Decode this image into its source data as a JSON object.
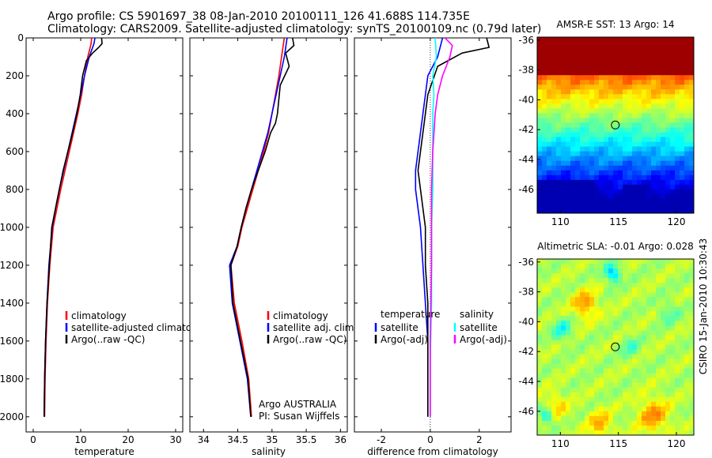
{
  "header": {
    "title_line1": "Argo profile: CS 5901697_38 08-Jan-2010 20100111_126 41.688S 114.735E",
    "title_line2": "Climatology: CARS2009. Satellite-adjusted climatology: synTS_20100109.nc (0.79d later)"
  },
  "side_label": "CSIRO 15-Jan-2010 10:30:43",
  "colors": {
    "red": "#ff0000",
    "blue": "#0000ff",
    "black": "#000000",
    "cyan": "#00ffff",
    "magenta": "#ff00ff",
    "circle": "#000000"
  },
  "chart_data": [
    {
      "id": "temperature",
      "type": "line",
      "xlabel": "temperature",
      "xlim": [
        -1.5,
        31.5
      ],
      "ylim": [
        0,
        2080
      ],
      "xticks": [
        0,
        10,
        20,
        30
      ],
      "yticks": [
        0,
        200,
        400,
        600,
        800,
        1000,
        1200,
        1400,
        1600,
        1800,
        2000
      ],
      "legend": [
        "climatology",
        "satellite-adjusted climatolog",
        "Argo(..raw -QC)"
      ],
      "series": [
        {
          "name": "climatology",
          "color": "red",
          "x": [
            12.3,
            12.2,
            11.5,
            10.8,
            10.2,
            9.4,
            8.5,
            7.6,
            6.7,
            5.8,
            5.0,
            4.2,
            3.5,
            3.0,
            2.7,
            2.5,
            2.4
          ],
          "y": [
            0,
            30,
            100,
            200,
            300,
            400,
            500,
            600,
            700,
            800,
            900,
            1000,
            1200,
            1400,
            1600,
            1800,
            2000
          ]
        },
        {
          "name": "satellite-adjusted climatology",
          "color": "blue",
          "x": [
            13.0,
            12.8,
            11.8,
            10.8,
            10.0,
            9.1,
            8.2,
            7.3,
            6.4,
            5.5,
            4.7,
            4.0,
            3.3,
            2.9,
            2.6,
            2.4,
            2.3
          ],
          "y": [
            0,
            30,
            100,
            200,
            300,
            400,
            500,
            600,
            700,
            800,
            900,
            1000,
            1200,
            1400,
            1600,
            1800,
            2000
          ]
        },
        {
          "name": "Argo(..raw -QC)",
          "color": "black",
          "x": [
            14.4,
            14.5,
            13.8,
            12.5,
            11.2,
            10.4,
            9.9,
            9.2,
            8.3,
            7.3,
            6.3,
            5.5,
            4.7,
            3.9,
            3.4,
            2.9,
            2.6,
            2.4,
            2.3
          ],
          "y": [
            0,
            30,
            50,
            80,
            120,
            200,
            300,
            400,
            500,
            600,
            700,
            800,
            900,
            1000,
            1200,
            1400,
            1600,
            1800,
            2000
          ]
        }
      ]
    },
    {
      "id": "salinity",
      "type": "line",
      "xlabel": "salinity",
      "xlim": [
        33.8,
        36.1
      ],
      "ylim": [
        0,
        2080
      ],
      "xticks": [
        34,
        34.5,
        35,
        35.5,
        36
      ],
      "xticklabels": [
        "34",
        "34.5",
        "35",
        "35.5",
        "36"
      ],
      "legend": [
        "climatology",
        "satellite adj. clim.",
        "Argo(..raw -QC)"
      ],
      "series": [
        {
          "name": "climatology",
          "color": "red",
          "x": [
            35.18,
            35.14,
            35.1,
            35.05,
            35.0,
            34.95,
            34.88,
            34.8,
            34.72,
            34.64,
            34.56,
            34.5,
            34.4,
            34.45,
            34.56,
            34.66,
            34.7
          ],
          "y": [
            0,
            100,
            200,
            300,
            400,
            500,
            600,
            700,
            800,
            900,
            1000,
            1100,
            1200,
            1400,
            1600,
            1800,
            2000
          ]
        },
        {
          "name": "satellite adj. clim.",
          "color": "blue",
          "x": [
            35.22,
            35.18,
            35.12,
            35.06,
            35.0,
            34.94,
            34.86,
            34.78,
            34.7,
            34.62,
            34.55,
            34.49,
            34.38,
            34.42,
            34.53,
            34.64,
            34.69
          ],
          "y": [
            0,
            100,
            200,
            300,
            400,
            500,
            600,
            700,
            800,
            900,
            1000,
            1100,
            1200,
            1400,
            1600,
            1800,
            2000
          ]
        },
        {
          "name": "Argo(..raw -QC)",
          "color": "black",
          "x": [
            35.3,
            35.32,
            35.2,
            35.25,
            35.12,
            35.08,
            35.05,
            34.98,
            34.9,
            34.8,
            34.7,
            34.62,
            34.55,
            34.49,
            34.4,
            34.43,
            34.54,
            34.65,
            34.69
          ],
          "y": [
            0,
            40,
            80,
            150,
            250,
            400,
            450,
            500,
            600,
            700,
            800,
            900,
            1000,
            1100,
            1200,
            1400,
            1600,
            1800,
            2000
          ]
        }
      ]
    },
    {
      "id": "difference",
      "type": "line",
      "xlabel": "difference from climatology",
      "xlim": [
        -3.1,
        3.3
      ],
      "ylim": [
        0,
        2080
      ],
      "xticks": [
        -2,
        0,
        2
      ],
      "legend_titles": [
        "temperature",
        "salinity"
      ],
      "legend": [
        "satellite",
        "Argo(-adj)",
        "satellite",
        "Argo(-adj)"
      ],
      "series": [
        {
          "name": "temperature satellite",
          "color": "blue",
          "x": [
            0.5,
            0.3,
            -0.1,
            -0.2,
            -0.3,
            -0.4,
            -0.5,
            -0.6,
            -0.6,
            -0.5,
            -0.4,
            -0.3,
            -0.2,
            -0.1,
            -0.1,
            -0.1
          ],
          "y": [
            0,
            100,
            200,
            300,
            400,
            500,
            600,
            700,
            800,
            900,
            1000,
            1200,
            1400,
            1600,
            1800,
            2000
          ]
        },
        {
          "name": "temperature Argo(-adj)",
          "color": "black",
          "x": [
            2.3,
            2.4,
            1.3,
            0.3,
            -0.1,
            -0.2,
            -0.3,
            -0.4,
            -0.5,
            -0.4,
            -0.3,
            -0.2,
            -0.2,
            -0.1,
            -0.1,
            -0.1
          ],
          "y": [
            0,
            50,
            80,
            150,
            300,
            400,
            500,
            600,
            700,
            800,
            900,
            1000,
            1200,
            1400,
            1600,
            2000
          ]
        },
        {
          "name": "salinity satellite",
          "color": "cyan",
          "x": [
            0.2,
            0.25,
            0.1,
            0.15,
            0.1,
            0.1,
            0.1,
            0.05,
            0.05,
            0.05,
            0.0,
            0.0
          ],
          "y": [
            0,
            100,
            200,
            300,
            400,
            600,
            800,
            1000,
            1200,
            1400,
            1700,
            2000
          ]
        },
        {
          "name": "salinity Argo(-adj)",
          "color": "magenta",
          "x": [
            0.6,
            0.9,
            0.8,
            0.5,
            0.3,
            0.2,
            0.1,
            0.05,
            0.05,
            0.0,
            0.0
          ],
          "y": [
            0,
            40,
            100,
            200,
            300,
            400,
            600,
            800,
            1200,
            1600,
            2000
          ]
        }
      ]
    },
    {
      "id": "sst_map",
      "type": "heatmap",
      "title": "AMSR-E SST: 13 Argo: 14",
      "xlim": [
        108,
        121.5
      ],
      "ylim": [
        -47.6,
        -35.8
      ],
      "xticks": [
        110,
        115,
        120
      ],
      "yticks": [
        -36,
        -38,
        -40,
        -42,
        -44,
        -46
      ],
      "marker": {
        "lon": 114.735,
        "lat": -41.688
      }
    },
    {
      "id": "sla_map",
      "type": "heatmap",
      "title": "Altimetric SLA: -0.01 Argo: 0.028",
      "xlim": [
        108,
        121.5
      ],
      "ylim": [
        -47.6,
        -35.8
      ],
      "xticks": [
        110,
        115,
        120
      ],
      "yticks": [
        -36,
        -38,
        -40,
        -42,
        -44,
        -46
      ],
      "marker": {
        "lon": 114.735,
        "lat": -41.688
      }
    }
  ]
}
